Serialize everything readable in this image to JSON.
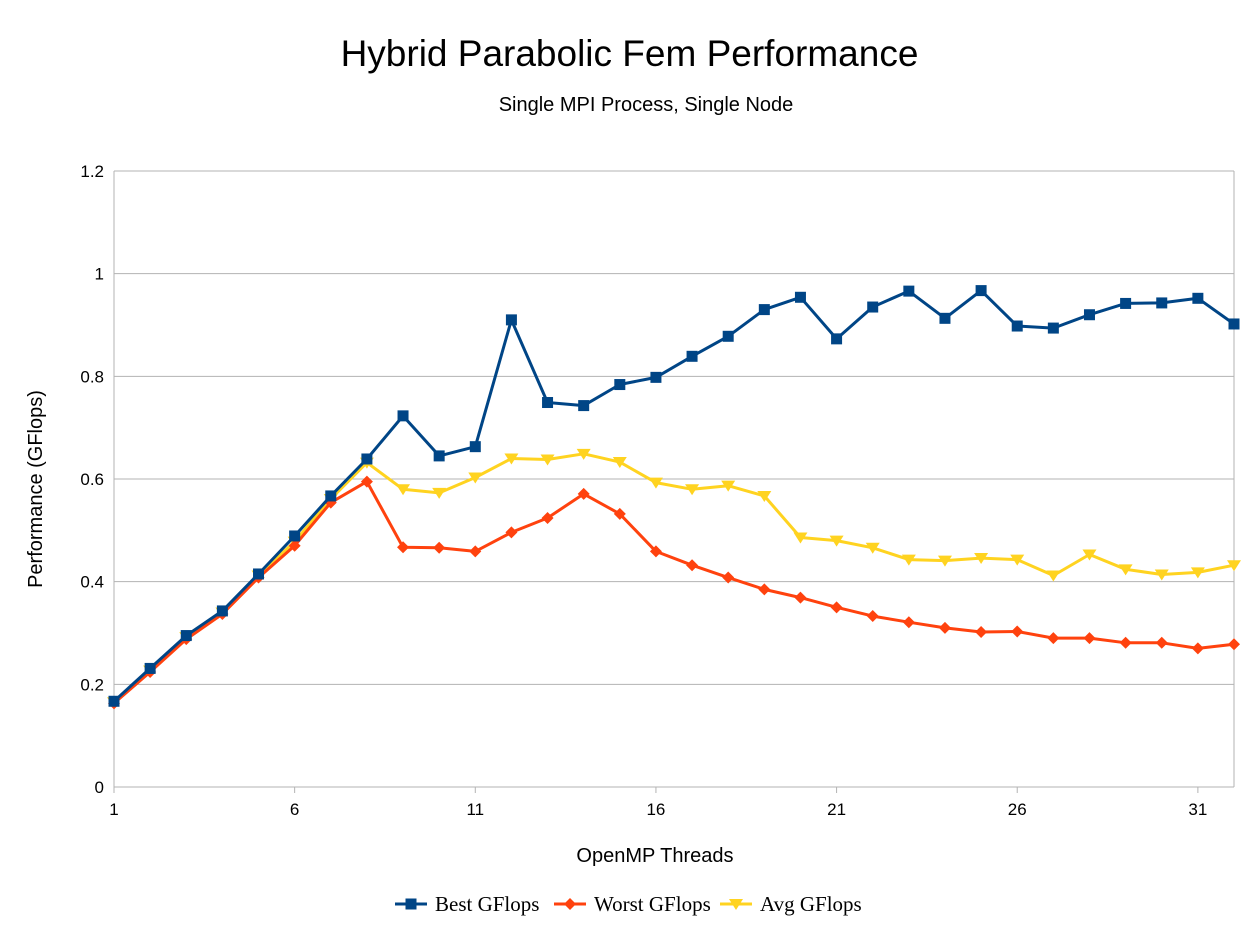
{
  "chart_data": {
    "type": "line",
    "title": "Hybrid Parabolic Fem Performance",
    "subtitle": "Single MPI Process, Single Node",
    "xlabel": "OpenMP Threads",
    "ylabel": "Performance (GFlops)",
    "xlim": [
      1,
      32
    ],
    "ylim": [
      0,
      1.2
    ],
    "x_ticks": [
      1,
      6,
      11,
      16,
      21,
      26,
      31
    ],
    "x_tick_labels": [
      "1",
      "6",
      "11",
      "16",
      "21",
      "26",
      "31"
    ],
    "y_ticks": [
      0,
      0.2,
      0.4,
      0.6,
      0.8,
      1,
      1.2
    ],
    "y_tick_labels": [
      "0",
      "0.2",
      "0.4",
      "0.6",
      "0.8",
      "1",
      "1.2"
    ],
    "grid": "horizontal",
    "legend_position": "bottom",
    "x": [
      1,
      2,
      3,
      4,
      5,
      6,
      7,
      8,
      9,
      10,
      11,
      12,
      13,
      14,
      15,
      16,
      17,
      18,
      19,
      20,
      21,
      22,
      23,
      24,
      25,
      26,
      27,
      28,
      29,
      30,
      31,
      32
    ],
    "series": [
      {
        "name": "Best GFlops",
        "color": "#004586",
        "marker": "square",
        "values": [
          0.167,
          0.231,
          0.295,
          0.343,
          0.415,
          0.489,
          0.567,
          0.639,
          0.723,
          0.645,
          0.663,
          0.91,
          0.749,
          0.743,
          0.784,
          0.798,
          0.839,
          0.878,
          0.93,
          0.954,
          0.873,
          0.935,
          0.966,
          0.913,
          0.967,
          0.898,
          0.894,
          0.92,
          0.942,
          0.943,
          0.952,
          0.902
        ]
      },
      {
        "name": "Worst GFlops",
        "color": "#ff420e",
        "marker": "diamond",
        "values": [
          0.163,
          0.224,
          0.288,
          0.337,
          0.408,
          0.47,
          0.554,
          0.595,
          0.467,
          0.466,
          0.459,
          0.496,
          0.524,
          0.571,
          0.532,
          0.459,
          0.432,
          0.408,
          0.385,
          0.369,
          0.35,
          0.333,
          0.321,
          0.31,
          0.302,
          0.303,
          0.29,
          0.29,
          0.281,
          0.281,
          0.27,
          0.278
        ]
      },
      {
        "name": "Avg GFlops",
        "color": "#ffd320",
        "marker": "triangle-down",
        "values": [
          0.165,
          0.227,
          0.292,
          0.34,
          0.412,
          0.478,
          0.561,
          0.632,
          0.58,
          0.573,
          0.603,
          0.64,
          0.638,
          0.649,
          0.633,
          0.593,
          0.58,
          0.587,
          0.567,
          0.486,
          0.48,
          0.466,
          0.443,
          0.441,
          0.446,
          0.443,
          0.412,
          0.453,
          0.424,
          0.414,
          0.418,
          0.432
        ]
      }
    ]
  }
}
